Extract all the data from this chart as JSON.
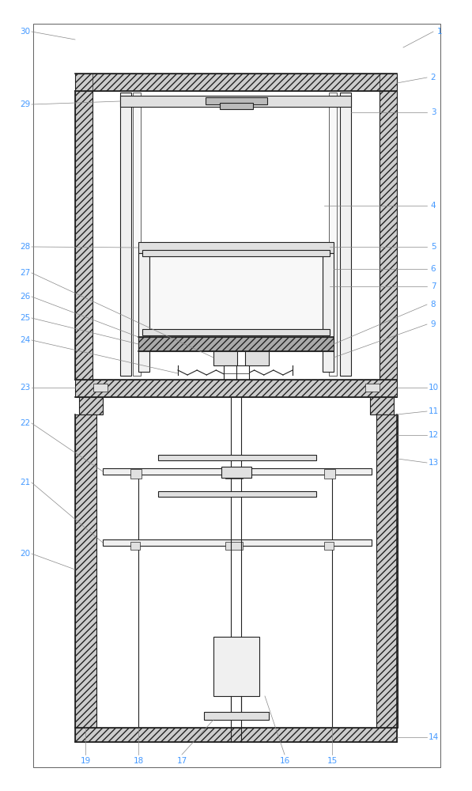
{
  "fig_width": 5.97,
  "fig_height": 10.0,
  "dpi": 100,
  "bg_color": "#ffffff",
  "lc": "#222222",
  "lc_label": "#4499ff",
  "lc_leader": "#888888",
  "lw_thin": 0.5,
  "lw_med": 0.8,
  "lw_thick": 1.2,
  "label_fs": 7.5,
  "hatch_fc": "#cccccc",
  "hatch_pat": "////",
  "gray_light": "#f0f0f0",
  "gray_mid": "#e0e0e0",
  "gray_dark": "#bbbbbb"
}
